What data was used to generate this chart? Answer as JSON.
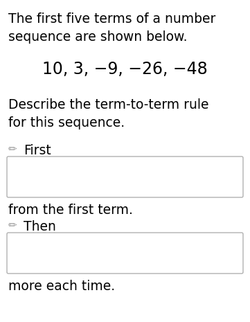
{
  "bg_color": "#ffffff",
  "text_color": "#000000",
  "box_border_color": "#b0b0b0",
  "pencil_color": "#999999",
  "line1": "The first five terms of a number",
  "line2": "sequence are shown below.",
  "sequence": "10, 3, −9, −26, −48",
  "line3": "Describe the term-to-term rule",
  "line4": "for this sequence.",
  "label_first": "First",
  "label_then": "Then",
  "line5": "from the first term.",
  "line6": "more each time.",
  "main_fontsize": 13.5,
  "seq_fontsize": 17.0,
  "pencil_fontsize": 11,
  "fig_width": 3.61,
  "fig_height": 4.65,
  "dpi": 100
}
